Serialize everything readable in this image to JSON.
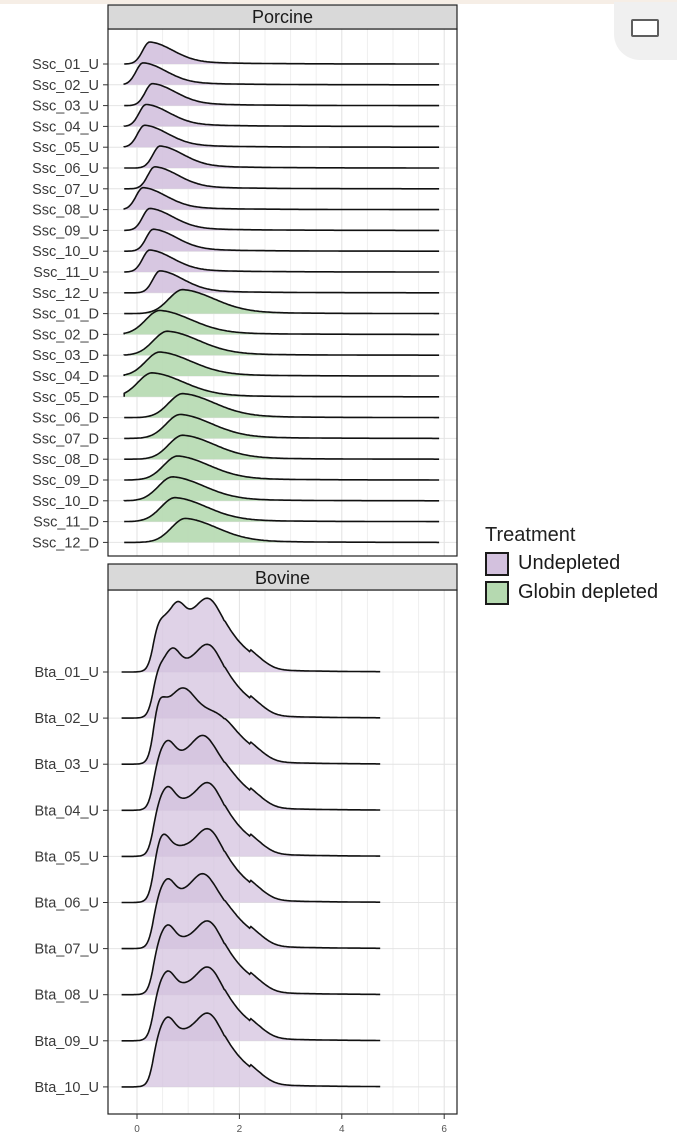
{
  "window": {
    "expand_icon": "maximize-window-icon"
  },
  "legend": {
    "title": "Treatment",
    "items": [
      {
        "label": "Undepleted",
        "color": "#d3c1de"
      },
      {
        "label": "Globin depleted",
        "color": "#b5d9b0"
      }
    ]
  },
  "chart_data": [
    {
      "type": "ridgeline",
      "panel": "Porcine",
      "xlim": [
        -0.3,
        6.2
      ],
      "grid": true,
      "legend_placement": "right",
      "series": [
        {
          "name": "Ssc_01_U",
          "treatment": "Undepleted",
          "mode": 0.25
        },
        {
          "name": "Ssc_02_U",
          "treatment": "Undepleted",
          "mode": 0.12
        },
        {
          "name": "Ssc_03_U",
          "treatment": "Undepleted",
          "mode": 0.3
        },
        {
          "name": "Ssc_04_U",
          "treatment": "Undepleted",
          "mode": 0.18
        },
        {
          "name": "Ssc_05_U",
          "treatment": "Undepleted",
          "mode": 0.15
        },
        {
          "name": "Ssc_06_U",
          "treatment": "Undepleted",
          "mode": 0.45
        },
        {
          "name": "Ssc_07_U",
          "treatment": "Undepleted",
          "mode": 0.35
        },
        {
          "name": "Ssc_08_U",
          "treatment": "Undepleted",
          "mode": 0.12
        },
        {
          "name": "Ssc_09_U",
          "treatment": "Undepleted",
          "mode": 0.25
        },
        {
          "name": "Ssc_10_U",
          "treatment": "Undepleted",
          "mode": 0.32
        },
        {
          "name": "Ssc_11_U",
          "treatment": "Undepleted",
          "mode": 0.25
        },
        {
          "name": "Ssc_12_U",
          "treatment": "Undepleted",
          "mode": 0.45
        },
        {
          "name": "Ssc_01_D",
          "treatment": "Globin depleted",
          "mode": 0.9
        },
        {
          "name": "Ssc_02_D",
          "treatment": "Globin depleted",
          "mode": 0.45
        },
        {
          "name": "Ssc_03_D",
          "treatment": "Globin depleted",
          "mode": 0.6
        },
        {
          "name": "Ssc_04_D",
          "treatment": "Globin depleted",
          "mode": 0.45
        },
        {
          "name": "Ssc_05_D",
          "treatment": "Globin depleted",
          "mode": 0.3
        },
        {
          "name": "Ssc_06_D",
          "treatment": "Globin depleted",
          "mode": 0.9
        },
        {
          "name": "Ssc_07_D",
          "treatment": "Globin depleted",
          "mode": 0.85
        },
        {
          "name": "Ssc_08_D",
          "treatment": "Globin depleted",
          "mode": 0.9
        },
        {
          "name": "Ssc_09_D",
          "treatment": "Globin depleted",
          "mode": 0.8
        },
        {
          "name": "Ssc_10_D",
          "treatment": "Globin depleted",
          "mode": 0.7
        },
        {
          "name": "Ssc_11_D",
          "treatment": "Globin depleted",
          "mode": 0.75
        },
        {
          "name": "Ssc_12_D",
          "treatment": "Globin depleted",
          "mode": 0.95
        }
      ]
    },
    {
      "type": "ridgeline",
      "panel": "Bovine",
      "xlim": [
        -0.3,
        6.2
      ],
      "x_ticks": [
        0,
        2,
        4,
        6
      ],
      "grid": true,
      "series": [
        {
          "name": "Bta_01_U",
          "treatment": "Undepleted",
          "peaks": [
            0.8,
            1.4
          ]
        },
        {
          "name": "Bta_02_U",
          "treatment": "Undepleted",
          "peaks": [
            0.7,
            1.4
          ]
        },
        {
          "name": "Bta_03_U",
          "treatment": "Undepleted",
          "peaks": [
            0.4,
            0.9
          ]
        },
        {
          "name": "Bta_04_U",
          "treatment": "Undepleted",
          "peaks": [
            0.6,
            1.3
          ]
        },
        {
          "name": "Bta_05_U",
          "treatment": "Undepleted",
          "peaks": [
            0.6,
            1.4
          ]
        },
        {
          "name": "Bta_06_U",
          "treatment": "Undepleted",
          "peaks": [
            0.5,
            1.4
          ]
        },
        {
          "name": "Bta_07_U",
          "treatment": "Undepleted",
          "peaks": [
            0.6,
            1.3
          ]
        },
        {
          "name": "Bta_08_U",
          "treatment": "Undepleted",
          "peaks": [
            0.6,
            1.4
          ]
        },
        {
          "name": "Bta_09_U",
          "treatment": "Undepleted",
          "peaks": [
            0.6,
            1.4
          ]
        },
        {
          "name": "Bta_10_U",
          "treatment": "Undepleted",
          "peaks": [
            0.6,
            1.4
          ]
        }
      ]
    }
  ]
}
